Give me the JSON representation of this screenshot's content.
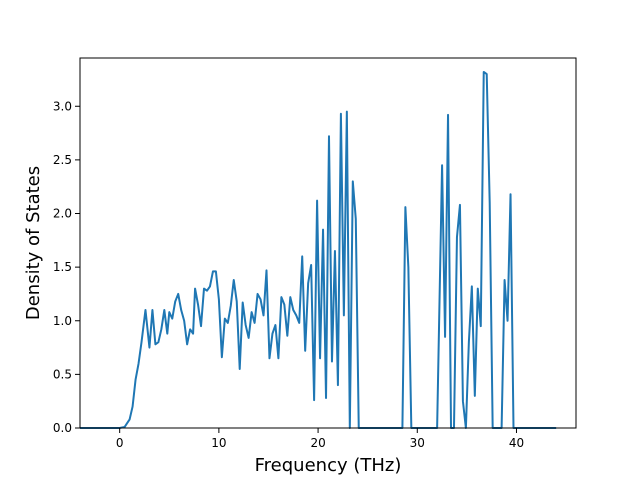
{
  "chart_data": {
    "type": "line",
    "title": "",
    "xlabel": "Frequency (THz)",
    "ylabel": "Density of States",
    "xlim": [
      -4.0,
      46.0
    ],
    "ylim": [
      0.0,
      3.45
    ],
    "grid": false,
    "legend": "none",
    "x_ticks": [
      0,
      10,
      20,
      30,
      40
    ],
    "y_ticks": [
      0.0,
      0.5,
      1.0,
      1.5,
      2.0,
      2.5,
      3.0
    ],
    "x_tick_labels": [
      "0",
      "10",
      "20",
      "30",
      "40"
    ],
    "y_tick_labels": [
      "0.0",
      "0.5",
      "1.0",
      "1.5",
      "2.0",
      "2.5",
      "3.0"
    ],
    "series": [
      {
        "color": "#1f77b4",
        "x": [
          -4.0,
          0.0,
          0.5,
          1.0,
          1.3,
          1.6,
          1.9,
          2.2,
          2.6,
          3.0,
          3.3,
          3.6,
          3.9,
          4.2,
          4.5,
          4.8,
          5.0,
          5.3,
          5.6,
          5.9,
          6.2,
          6.5,
          6.8,
          7.1,
          7.4,
          7.6,
          7.9,
          8.2,
          8.5,
          8.8,
          9.1,
          9.4,
          9.7,
          10.0,
          10.3,
          10.6,
          10.9,
          11.2,
          11.5,
          11.8,
          12.1,
          12.4,
          12.7,
          13.0,
          13.3,
          13.6,
          13.9,
          14.2,
          14.5,
          14.8,
          15.1,
          15.4,
          15.7,
          16.0,
          16.3,
          16.6,
          16.9,
          17.2,
          17.5,
          17.8,
          18.1,
          18.4,
          18.7,
          19.0,
          19.3,
          19.6,
          19.9,
          20.2,
          20.5,
          20.8,
          21.1,
          21.4,
          21.7,
          22.0,
          22.3,
          22.6,
          22.9,
          23.2,
          23.5,
          23.8,
          24.1,
          24.4,
          24.7,
          25.0,
          25.3,
          25.6,
          25.9,
          26.1,
          26.3,
          26.6,
          26.8,
          27.0,
          27.3,
          28.0,
          28.5,
          28.8,
          29.1,
          29.4,
          29.7,
          30.0,
          31.0,
          32.0,
          32.5,
          32.8,
          33.1,
          33.4,
          33.7,
          34.0,
          34.3,
          34.6,
          34.9,
          35.2,
          35.5,
          35.8,
          36.1,
          36.4,
          36.7,
          37.0,
          37.3,
          37.6,
          37.9,
          38.2,
          38.5,
          38.8,
          39.1,
          39.4,
          39.7,
          40.0,
          40.5,
          42.0,
          44.0
        ],
        "y": [
          0.0,
          0.0,
          0.01,
          0.08,
          0.2,
          0.45,
          0.6,
          0.8,
          1.1,
          0.75,
          1.1,
          0.78,
          0.8,
          0.92,
          1.1,
          0.88,
          1.08,
          1.02,
          1.18,
          1.25,
          1.1,
          1.0,
          0.78,
          0.92,
          0.88,
          1.3,
          1.15,
          0.95,
          1.3,
          1.28,
          1.32,
          1.46,
          1.46,
          1.2,
          0.66,
          1.02,
          0.98,
          1.14,
          1.38,
          1.18,
          0.55,
          1.17,
          0.96,
          0.84,
          1.08,
          0.98,
          1.25,
          1.2,
          1.05,
          1.47,
          0.65,
          0.88,
          0.96,
          0.65,
          1.22,
          1.15,
          0.86,
          1.22,
          1.1,
          1.05,
          0.98,
          1.6,
          0.72,
          1.35,
          1.52,
          0.26,
          2.12,
          0.65,
          1.85,
          0.28,
          2.72,
          0.62,
          1.65,
          0.4,
          2.93,
          1.05,
          2.95,
          0.0,
          2.3,
          1.95,
          0.0,
          0.0,
          0.0,
          0.0,
          0.0,
          0.0,
          0.0,
          0.0,
          0.0,
          0.0,
          0.0,
          0.0,
          0.0,
          0.0,
          0.0,
          2.06,
          1.5,
          0.0,
          0.0,
          0.0,
          0.0,
          0.0,
          2.45,
          0.85,
          2.92,
          0.0,
          0.0,
          1.78,
          2.08,
          0.25,
          0.0,
          0.8,
          1.32,
          0.3,
          1.3,
          0.95,
          3.32,
          3.3,
          2.1,
          0.0,
          0.0,
          0.0,
          0.0,
          1.38,
          1.0,
          2.18,
          0.0,
          0.0,
          0.0,
          0.0,
          0.0
        ]
      }
    ]
  }
}
